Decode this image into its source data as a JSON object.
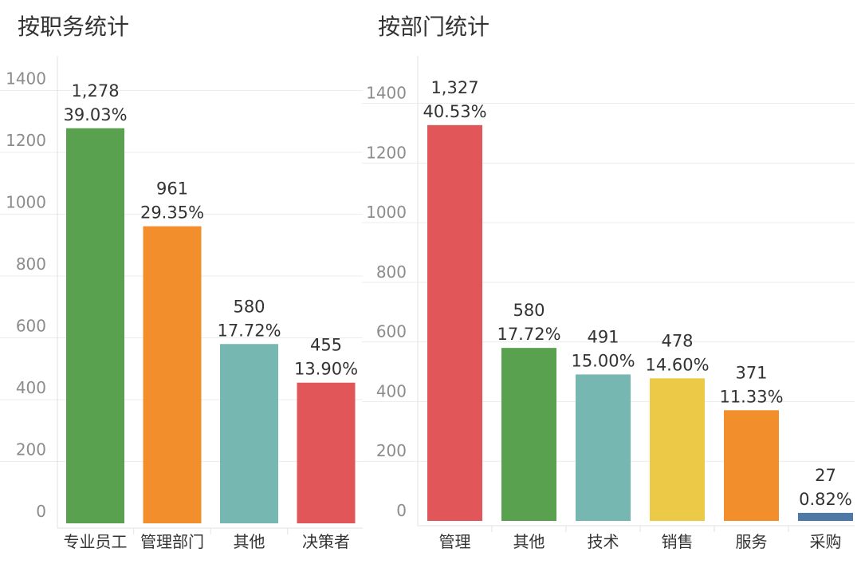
{
  "chart_data": [
    {
      "type": "bar",
      "title": "按职务统计",
      "categories": [
        "专业员工",
        "管理部门",
        "其他",
        "决策者"
      ],
      "values": [
        1278,
        961,
        580,
        455
      ],
      "value_labels": [
        "1,278",
        "961",
        "580",
        "455"
      ],
      "percent_labels": [
        "39.03%",
        "29.35%",
        "17.72%",
        "13.90%"
      ],
      "colors": [
        "#59a14f",
        "#f28e2b",
        "#76b7b2",
        "#e15759"
      ],
      "yticks": [
        "0",
        "200",
        "400",
        "600",
        "800",
        "1000",
        "1200",
        "1400"
      ],
      "ylim": [
        0,
        1450
      ],
      "xlabel": "",
      "ylabel": "",
      "grid": true
    },
    {
      "type": "bar",
      "title": "按部门统计",
      "categories": [
        "管理",
        "其他",
        "技术",
        "销售",
        "服务",
        "采购"
      ],
      "values": [
        1327,
        580,
        491,
        478,
        371,
        27
      ],
      "value_labels": [
        "1,327",
        "580",
        "491",
        "478",
        "371",
        "27"
      ],
      "percent_labels": [
        "40.53%",
        "17.72%",
        "15.00%",
        "14.60%",
        "11.33%",
        "0.82%"
      ],
      "colors": [
        "#e15759",
        "#59a14f",
        "#76b7b2",
        "#edc948",
        "#f28e2b",
        "#4e79a7"
      ],
      "yticks": [
        "0",
        "200",
        "400",
        "600",
        "800",
        "1000",
        "1200",
        "1400"
      ],
      "ylim": [
        0,
        1400
      ],
      "xlabel": "",
      "ylabel": "",
      "grid": true
    }
  ]
}
